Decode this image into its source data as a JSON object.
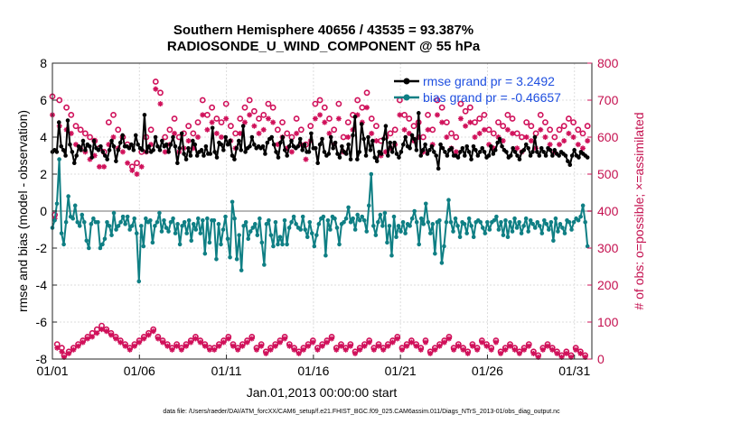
{
  "chart_data": {
    "type": "line",
    "title_line1": "Southern Hemisphere 40656 / 43535 = 93.387%",
    "title_line2": "RADIOSONDE_U_WIND_COMPONENT @ 55 hPa",
    "xlabel": "Jan.01,2013 00:00:00 start",
    "ylabel": "rmse and bias (model - observation)",
    "y2label": "# of obs: o=possible; ×=assimilated",
    "footnote": "data file: /Users/raeder/DAI/ATM_forcXX/CAM6_setup/f.e21.FHIST_BGC.f09_025.CAM6assim.011/Diags_NTrS_2013-01/obs_diag_output.nc",
    "x_tick_labels": [
      "01/01",
      "01/06",
      "01/11",
      "01/16",
      "01/21",
      "01/26",
      "01/31"
    ],
    "x_tick_days": [
      1,
      6,
      11,
      16,
      21,
      26,
      31
    ],
    "xlim": [
      1,
      32
    ],
    "ylim": [
      -8,
      8
    ],
    "y_ticks": [
      -8,
      -6,
      -4,
      -2,
      0,
      2,
      4,
      6,
      8
    ],
    "y_tick_labels": [
      "-8",
      "-6",
      "-4",
      "-2",
      "0",
      "2",
      "4",
      "6",
      "8"
    ],
    "y2lim": [
      0,
      800
    ],
    "y2_ticks": [
      0,
      100,
      200,
      300,
      400,
      500,
      600,
      700,
      800
    ],
    "y2_tick_labels": [
      "0",
      "100",
      "200",
      "300",
      "400",
      "500",
      "600",
      "700",
      "800"
    ],
    "legend": [
      {
        "label": "rmse grand pr = 3.2492",
        "color": "#000000"
      },
      {
        "label": "bias grand pr = -0.46657",
        "color": "#0f7f84"
      }
    ],
    "colors": {
      "rmse": "#000000",
      "bias": "#0f7f84",
      "obs": "#d0105a",
      "zero_line": "#b8b8b8",
      "grid": "#dddddd"
    },
    "series": [
      {
        "name": "rmse",
        "axis": "left",
        "values": [
          3.2,
          3.3,
          3.2,
          4.8,
          3.5,
          3.3,
          3.0,
          4.9,
          3.6,
          3.2,
          2.6,
          3.0,
          3.5,
          3.3,
          3.8,
          3.3,
          3.6,
          3.5,
          2.9,
          3.8,
          3.4,
          3.3,
          3.5,
          3.2,
          3.0,
          2.8,
          3.3,
          3.8,
          3.5,
          2.7,
          3.3,
          3.7,
          4.1,
          3.5,
          3.5,
          3.4,
          3.6,
          3.3,
          4.1,
          3.6,
          3.4,
          3.3,
          5.2,
          3.2,
          3.5,
          3.2,
          3.3,
          4.0,
          3.5,
          3.3,
          3.8,
          3.5,
          3.6,
          3.2,
          3.6,
          4.0,
          3.5,
          2.6,
          3.4,
          4.2,
          3.1,
          2.8,
          3.4,
          3.0,
          3.8,
          3.6,
          3.0,
          3.2,
          3.3,
          3.0,
          3.5,
          3.1,
          3.1,
          4.5,
          3.2,
          2.9,
          3.7,
          3.6,
          3.3,
          4.0,
          3.6,
          3.8,
          3.0,
          2.8,
          3.4,
          3.8,
          3.3,
          4.6,
          3.2,
          3.4,
          3.5,
          4.0,
          3.6,
          3.4,
          3.5,
          3.4,
          3.5,
          3.1,
          3.7,
          3.9,
          4.0,
          3.6,
          3.2,
          2.9,
          3.7,
          4.0,
          3.3,
          3.0,
          3.5,
          3.8,
          3.5,
          3.4,
          3.5,
          3.9,
          3.3,
          3.6,
          3.2,
          3.2,
          4.2,
          3.4,
          3.4,
          2.6,
          3.6,
          3.9,
          3.2,
          3.0,
          3.1,
          4.0,
          3.4,
          3.7,
          3.1,
          2.9,
          3.5,
          3.2,
          3.1,
          3.6,
          2.8,
          4.1,
          5.1,
          2.8,
          3.2,
          4.7,
          3.9,
          3.0,
          4.0,
          3.3,
          3.8,
          2.9,
          2.7,
          3.2,
          3.1,
          3.9,
          4.6,
          3.0,
          3.7,
          3.2,
          3.7,
          3.1,
          2.9,
          3.2,
          3.6,
          4.0,
          3.5,
          3.4,
          4.1,
          3.9,
          3.3,
          5.3,
          3.0,
          3.3,
          3.6,
          3.1,
          3.3,
          3.5,
          3.2,
          3.0,
          2.3,
          3.6,
          3.4,
          3.2,
          3.0,
          3.3,
          3.4,
          3.0,
          3.0,
          2.9,
          3.2,
          3.4,
          3.0,
          3.5,
          3.2,
          2.8,
          3.5,
          3.3,
          3.0,
          3.2,
          3.4,
          3.2,
          2.9,
          3.0,
          3.5,
          3.1,
          3.3,
          3.7,
          3.9,
          3.5,
          3.3,
          3.2,
          2.9,
          3.0,
          3.4,
          3.2,
          3.0,
          2.8,
          3.2,
          3.3,
          3.6,
          3.4,
          3.0,
          3.2,
          4.0,
          3.2,
          3.0,
          3.4,
          3.2,
          3.0,
          3.4,
          3.3,
          3.0,
          3.3,
          3.1,
          3.0,
          3.2,
          3.1,
          3.0,
          2.7,
          2.5,
          3.0,
          3.3,
          3.0,
          2.9,
          3.2,
          3.1,
          3.0,
          2.9
        ]
      },
      {
        "name": "bias",
        "axis": "left",
        "values": [
          -0.9,
          -0.5,
          0.4,
          2.8,
          -1.2,
          -1.8,
          -0.6,
          0.8,
          -0.3,
          -0.4,
          0.3,
          -0.6,
          -0.8,
          -0.2,
          -0.6,
          -1.6,
          -2.0,
          -0.7,
          -0.4,
          -0.6,
          -0.6,
          -2.0,
          -1.8,
          -1.5,
          -0.6,
          -0.8,
          -1.3,
          -0.1,
          -1.0,
          -0.8,
          -0.6,
          -0.3,
          -0.7,
          -0.3,
          -1.0,
          -0.8,
          -0.4,
          -1.2,
          -3.8,
          -0.8,
          -1.9,
          -0.4,
          -0.6,
          -0.5,
          -1.7,
          -0.8,
          -0.6,
          -0.1,
          -1.1,
          -0.5,
          -0.9,
          -1.1,
          -0.6,
          -0.4,
          -1.2,
          -0.7,
          -1.8,
          -0.8,
          -0.6,
          -1.2,
          -0.5,
          -1.6,
          -0.7,
          -1.0,
          -0.4,
          -1.2,
          -0.5,
          -2.3,
          -0.4,
          -1.7,
          -0.5,
          -0.5,
          -2.6,
          -0.7,
          -1.8,
          -1.0,
          -0.3,
          -1.5,
          -2.5,
          0.5,
          -0.4,
          -2.6,
          -1.3,
          -3.2,
          -0.8,
          -0.6,
          -1.5,
          -1.1,
          -0.9,
          -0.7,
          -1.3,
          -0.4,
          -1.7,
          -2.9,
          -0.7,
          -0.5,
          -1.3,
          -1.9,
          -0.6,
          -1.8,
          -1.4,
          -1.8,
          -0.5,
          -1.8,
          -0.9,
          -0.6,
          -0.3,
          -0.7,
          -0.9,
          -1.0,
          -0.3,
          -1.0,
          -1.4,
          -0.6,
          -1.2,
          -1.9,
          -1.3,
          -0.7,
          -0.4,
          -0.3,
          -2.4,
          -0.5,
          -1.0,
          -0.3,
          -0.4,
          -0.9,
          -1.8,
          -0.7,
          -0.6,
          -0.4,
          0.2,
          -0.6,
          -0.4,
          -1.0,
          -0.2,
          -0.5,
          -0.3,
          -0.5,
          -1.1,
          0.3,
          2.0,
          -0.8,
          -1.3,
          -0.6,
          -0.2,
          -0.8,
          -0.1,
          -1.7,
          -0.8,
          -2.4,
          -0.3,
          -1.4,
          -0.8,
          -1.1,
          -0.6,
          -1.2,
          -0.7,
          -0.8,
          -0.4,
          0.0,
          -0.6,
          -1.8,
          -0.4,
          -0.7,
          0.4,
          -0.6,
          -1.2,
          -0.7,
          -2.3,
          -0.6,
          -0.5,
          -2.8,
          -1.9,
          -0.6,
          0.6,
          -0.6,
          -1.1,
          -0.4,
          -0.8,
          -1.4,
          -0.6,
          -0.7,
          -1.2,
          -0.4,
          -0.8,
          -1.4,
          -0.6,
          -0.5,
          -0.6,
          -0.9,
          -1.2,
          -0.6,
          -1.0,
          -0.6,
          -0.5,
          -0.3,
          -1.0,
          -0.6,
          -1.3,
          -0.5,
          -1.4,
          -0.6,
          -1.1,
          -0.4,
          -0.9,
          -0.6,
          -1.2,
          -0.8,
          -0.4,
          -1.1,
          -0.5,
          -0.7,
          -0.9,
          -0.6,
          -0.8,
          -1.2,
          -0.5,
          -0.7,
          -1.0,
          -0.6,
          -1.6,
          -0.4,
          -1.1,
          -0.7,
          -0.9,
          -1.2,
          -0.5,
          -0.6,
          -1.0,
          -0.6,
          -0.4,
          -0.5,
          -0.3,
          0.3,
          -0.6,
          -1.9
        ]
      },
      {
        "name": "obs_possible",
        "axis": "right",
        "marker": "circle",
        "values": [
          710,
          390,
          40,
          700,
          30,
          10,
          680,
          20,
          660,
          30,
          630,
          40,
          620,
          50,
          610,
          60,
          600,
          70,
          590,
          80,
          570,
          90,
          560,
          80,
          640,
          70,
          660,
          60,
          620,
          50,
          600,
          40,
          580,
          30,
          520,
          40,
          530,
          50,
          560,
          60,
          600,
          70,
          620,
          80,
          750,
          60,
          720,
          50,
          600,
          40,
          620,
          30,
          650,
          40,
          600,
          30,
          610,
          40,
          630,
          50,
          610,
          60,
          640,
          50,
          700,
          40,
          660,
          30,
          680,
          30,
          650,
          40,
          640,
          50,
          690,
          60,
          630,
          40,
          610,
          30,
          650,
          40,
          680,
          50,
          700,
          60,
          670,
          30,
          650,
          40,
          660,
          20,
          690,
          30,
          680,
          40,
          620,
          50,
          640,
          60,
          610,
          40,
          600,
          30,
          650,
          20,
          620,
          30,
          580,
          40,
          630,
          50,
          690,
          30,
          700,
          40,
          680,
          50,
          650,
          60,
          620,
          30,
          690,
          40,
          600,
          30,
          640,
          40,
          660,
          20,
          700,
          30,
          680,
          40,
          720,
          50,
          650,
          30,
          630,
          40,
          590,
          30,
          600,
          40,
          610,
          50,
          620,
          60,
          700,
          30,
          660,
          40,
          650,
          50,
          630,
          40,
          640,
          30,
          600,
          50,
          660,
          20,
          620,
          30,
          700,
          40,
          680,
          50,
          640,
          60,
          610,
          30,
          600,
          40,
          690,
          30,
          670,
          20,
          680,
          40,
          640,
          30,
          650,
          50,
          660,
          40,
          620,
          30,
          610,
          50,
          640,
          20,
          630,
          30,
          660,
          40,
          650,
          30,
          610,
          20,
          600,
          30,
          640,
          40,
          630,
          20,
          610,
          10,
          660,
          30,
          640,
          40,
          620,
          30,
          600,
          20,
          620,
          10,
          630,
          20,
          650,
          10,
          640,
          30,
          620,
          20,
          610,
          10,
          630
        ]
      },
      {
        "name": "obs_assimilated",
        "axis": "right",
        "marker": "asterisk",
        "values": [
          660,
          380,
          30,
          630,
          20,
          5,
          620,
          15,
          610,
          25,
          580,
          35,
          570,
          45,
          560,
          55,
          540,
          60,
          550,
          70,
          520,
          80,
          520,
          75,
          580,
          65,
          600,
          55,
          570,
          45,
          560,
          35,
          530,
          25,
          510,
          35,
          500,
          45,
          520,
          55,
          560,
          65,
          580,
          75,
          730,
          55,
          690,
          45,
          560,
          35,
          580,
          25,
          610,
          35,
          560,
          25,
          570,
          35,
          590,
          45,
          570,
          55,
          600,
          45,
          660,
          35,
          620,
          25,
          640,
          25,
          610,
          35,
          600,
          45,
          650,
          55,
          590,
          35,
          570,
          25,
          610,
          35,
          640,
          45,
          660,
          55,
          630,
          25,
          610,
          35,
          620,
          15,
          650,
          25,
          640,
          35,
          580,
          45,
          600,
          55,
          570,
          35,
          560,
          25,
          610,
          15,
          580,
          25,
          540,
          35,
          590,
          45,
          650,
          25,
          660,
          35,
          640,
          45,
          610,
          55,
          580,
          25,
          650,
          35,
          560,
          25,
          600,
          35,
          620,
          15,
          660,
          25,
          640,
          35,
          680,
          45,
          610,
          25,
          590,
          35,
          550,
          25,
          560,
          35,
          570,
          45,
          580,
          55,
          660,
          25,
          620,
          35,
          610,
          45,
          590,
          35,
          600,
          25,
          560,
          45,
          620,
          15,
          580,
          25,
          660,
          35,
          640,
          45,
          600,
          55,
          570,
          25,
          560,
          35,
          650,
          25,
          630,
          15,
          640,
          35,
          600,
          25,
          610,
          45,
          620,
          35,
          580,
          25,
          570,
          45,
          600,
          15,
          590,
          25,
          620,
          35,
          610,
          25,
          570,
          15,
          560,
          25,
          600,
          35,
          590,
          15,
          570,
          5,
          620,
          25,
          600,
          35,
          580,
          25,
          560,
          15,
          580,
          5,
          590,
          15,
          610,
          5,
          600,
          25,
          580,
          15,
          570,
          5,
          590
        ]
      }
    ]
  }
}
